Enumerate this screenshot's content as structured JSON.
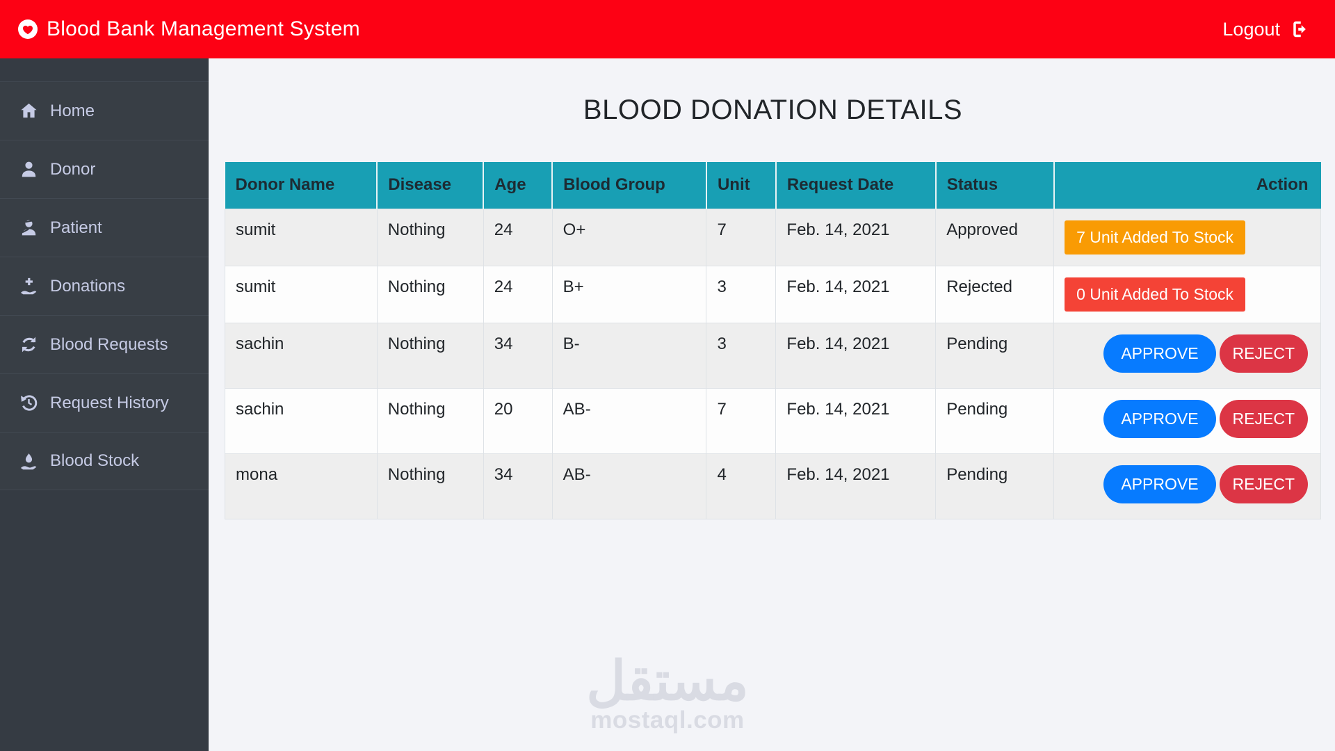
{
  "header": {
    "brand": "Blood Bank Management System",
    "logout_label": "Logout"
  },
  "sidebar": {
    "items": [
      {
        "id": "home",
        "label": "Home",
        "icon": "home-icon"
      },
      {
        "id": "donor",
        "label": "Donor",
        "icon": "user-icon"
      },
      {
        "id": "patient",
        "label": "Patient",
        "icon": "patient-icon"
      },
      {
        "id": "donations",
        "label": "Donations",
        "icon": "hand-holding-medical-icon"
      },
      {
        "id": "blood-requests",
        "label": "Blood Requests",
        "icon": "sync-icon"
      },
      {
        "id": "request-history",
        "label": "Request History",
        "icon": "history-icon"
      },
      {
        "id": "blood-stock",
        "label": "Blood Stock",
        "icon": "hand-holding-water-icon"
      }
    ]
  },
  "main": {
    "title": "BLOOD DONATION DETAILS",
    "table": {
      "columns": [
        "Donor Name",
        "Disease",
        "Age",
        "Blood Group",
        "Unit",
        "Request Date",
        "Status",
        "Action"
      ],
      "field_order": [
        "donor_name",
        "disease",
        "age",
        "blood_group",
        "unit",
        "request_date",
        "status"
      ],
      "rows": [
        {
          "donor_name": "sumit",
          "disease": "Nothing",
          "age": "24",
          "blood_group": "O+",
          "unit": "7",
          "request_date": "Feb. 14, 2021",
          "status": "Approved",
          "action": {
            "type": "badge",
            "label": "7 Unit Added To Stock",
            "color": "#f99b04"
          }
        },
        {
          "donor_name": "sumit",
          "disease": "Nothing",
          "age": "24",
          "blood_group": "B+",
          "unit": "3",
          "request_date": "Feb. 14, 2021",
          "status": "Rejected",
          "action": {
            "type": "badge",
            "label": "0 Unit Added To Stock",
            "color": "#f44336"
          }
        },
        {
          "donor_name": "sachin",
          "disease": "Nothing",
          "age": "34",
          "blood_group": "B-",
          "unit": "3",
          "request_date": "Feb. 14, 2021",
          "status": "Pending",
          "action": {
            "type": "buttons",
            "approve_label": "APPROVE",
            "reject_label": "REJECT"
          }
        },
        {
          "donor_name": "sachin",
          "disease": "Nothing",
          "age": "20",
          "blood_group": "AB-",
          "unit": "7",
          "request_date": "Feb. 14, 2021",
          "status": "Pending",
          "action": {
            "type": "buttons",
            "approve_label": "APPROVE",
            "reject_label": "REJECT"
          }
        },
        {
          "donor_name": "mona",
          "disease": "Nothing",
          "age": "34",
          "blood_group": "AB-",
          "unit": "4",
          "request_date": "Feb. 14, 2021",
          "status": "Pending",
          "action": {
            "type": "buttons",
            "approve_label": "APPROVE",
            "reject_label": "REJECT"
          }
        }
      ]
    }
  },
  "watermark": {
    "logo": "مستقل",
    "domain": "mostaql.com"
  },
  "colors": {
    "navbar_red": "#fd0114",
    "sidebar_bg": "#353b43",
    "sidebar_text": "#c6cbe5",
    "table_header_teal": "#189fb4",
    "row_stripe_gray": "#eeeeee",
    "badge_orange": "#f99b04",
    "badge_red": "#f44336",
    "approve_blue": "#077bff",
    "reject_red": "#dc3545",
    "main_bg": "#f3f4f8"
  }
}
